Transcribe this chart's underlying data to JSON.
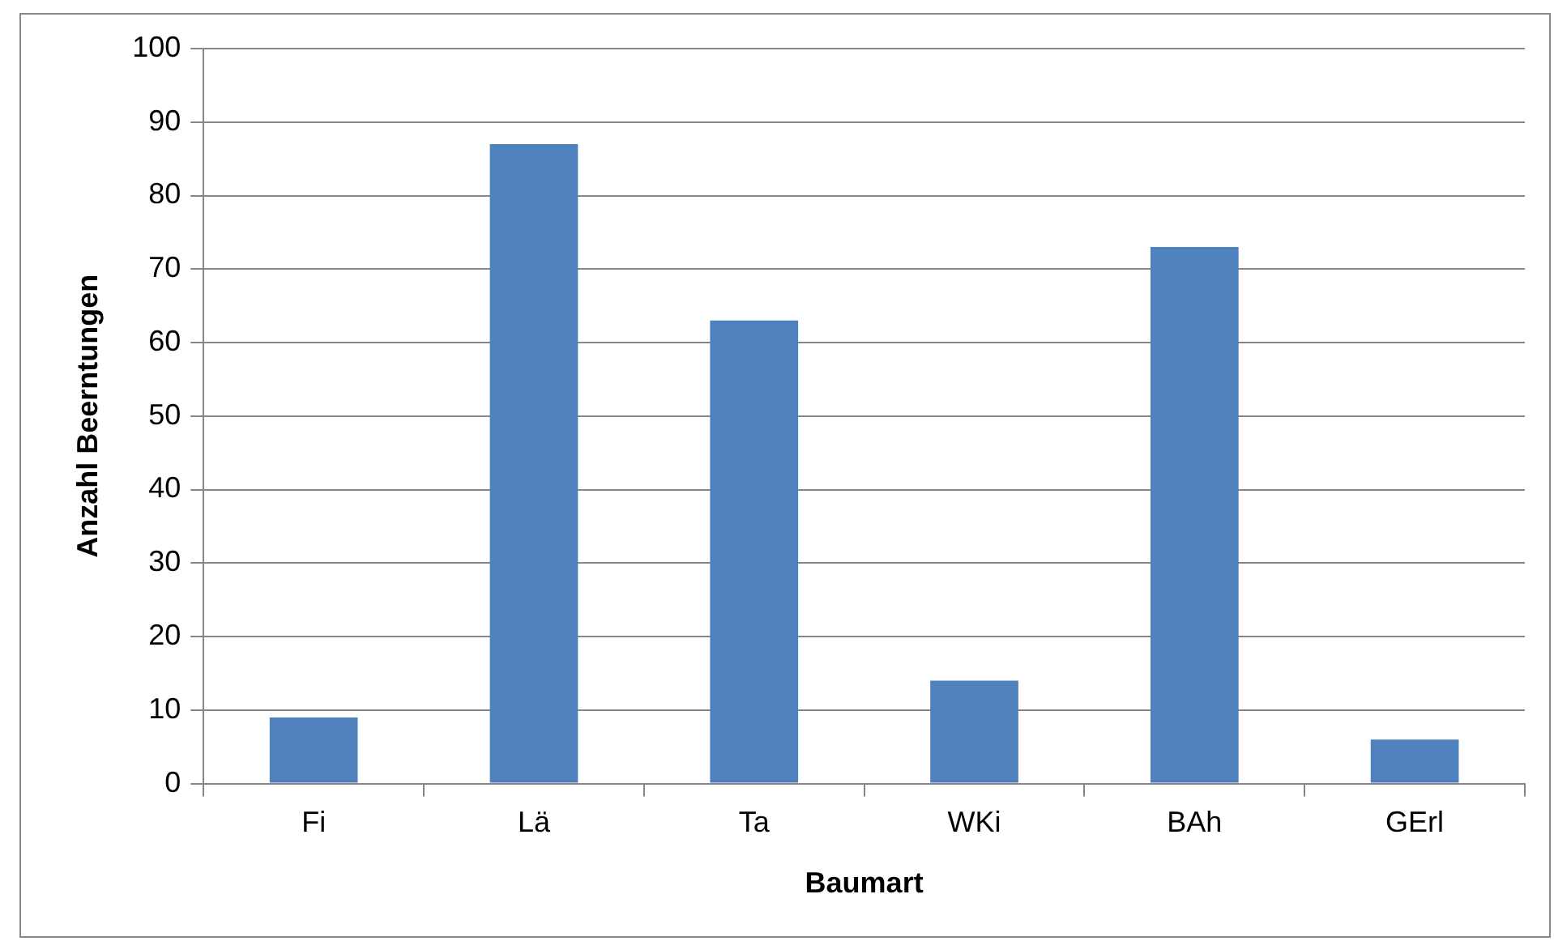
{
  "chart_data": {
    "type": "bar",
    "xlabel": "Baumart",
    "ylabel": "Anzahl Beerntungen",
    "categories": [
      "Fi",
      "Lä",
      "Ta",
      "WKi",
      "BAh",
      "GErl"
    ],
    "values": [
      9,
      87,
      63,
      14,
      73,
      6
    ],
    "color": "#4f81bd",
    "ylim": [
      0,
      100
    ],
    "yticks": [
      0,
      10,
      20,
      30,
      40,
      50,
      60,
      70,
      80,
      90,
      100
    ],
    "grid": "y",
    "legend": false
  }
}
